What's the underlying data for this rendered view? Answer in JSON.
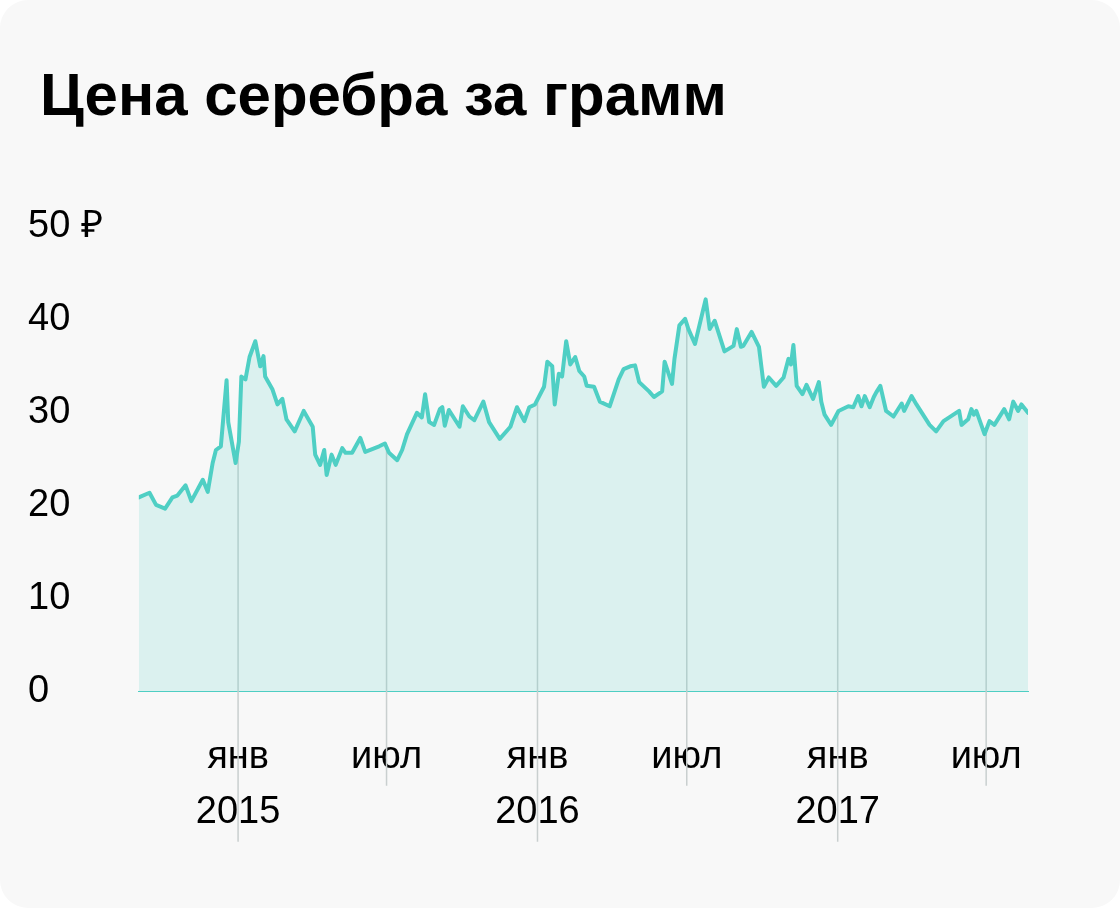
{
  "chart_data": {
    "type": "area",
    "title": "Цена серебра за грамм",
    "x": [
      "2014-09-02",
      "2014-09-15",
      "2014-09-23",
      "2014-10-04",
      "2014-10-13",
      "2014-10-19",
      "2014-10-29",
      "2014-11-05",
      "2014-11-19",
      "2014-11-25",
      "2014-12-01",
      "2014-12-05",
      "2014-12-11",
      "2014-12-18",
      "2014-12-20",
      "2014-12-29",
      "2015-01-02",
      "2015-01-05",
      "2015-01-10",
      "2015-01-15",
      "2015-01-22",
      "2015-01-28",
      "2015-02-01",
      "2015-02-03",
      "2015-02-12",
      "2015-02-18",
      "2015-02-24",
      "2015-03-01",
      "2015-03-11",
      "2015-03-22",
      "2015-04-02",
      "2015-04-05",
      "2015-04-11",
      "2015-04-16",
      "2015-04-19",
      "2015-04-25",
      "2015-04-30",
      "2015-05-08",
      "2015-05-12",
      "2015-05-20",
      "2015-05-30",
      "2015-06-05",
      "2015-06-22",
      "2015-06-29",
      "2015-07-04",
      "2015-07-14",
      "2015-07-20",
      "2015-07-26",
      "2015-08-07",
      "2015-08-13",
      "2015-08-17",
      "2015-08-22",
      "2015-08-28",
      "2015-09-04",
      "2015-09-07",
      "2015-09-10",
      "2015-09-15",
      "2015-09-28",
      "2015-10-02",
      "2015-10-10",
      "2015-10-16",
      "2015-10-27",
      "2015-11-03",
      "2015-11-16",
      "2015-11-29",
      "2015-12-07",
      "2015-12-16",
      "2015-12-22",
      "2015-12-29",
      "2016-01-09",
      "2016-01-13",
      "2016-01-19",
      "2016-01-22",
      "2016-01-27",
      "2016-01-31",
      "2016-02-05",
      "2016-02-10",
      "2016-02-16",
      "2016-02-21",
      "2016-02-27",
      "2016-03-01",
      "2016-03-10",
      "2016-03-17",
      "2016-03-29",
      "2016-04-03",
      "2016-04-09",
      "2016-04-15",
      "2016-04-23",
      "2016-04-29",
      "2016-05-04",
      "2016-05-16",
      "2016-05-22",
      "2016-06-01",
      "2016-06-04",
      "2016-06-13",
      "2016-06-16",
      "2016-06-22",
      "2016-06-29",
      "2016-07-03",
      "2016-07-11",
      "2016-07-24",
      "2016-07-29",
      "2016-08-04",
      "2016-08-16",
      "2016-08-27",
      "2016-08-31",
      "2016-09-05",
      "2016-09-08",
      "2016-09-18",
      "2016-09-27",
      "2016-10-03",
      "2016-10-09",
      "2016-10-18",
      "2016-10-27",
      "2016-11-02",
      "2016-11-05",
      "2016-11-08",
      "2016-11-12",
      "2016-11-19",
      "2016-11-24",
      "2016-12-02",
      "2016-12-09",
      "2016-12-12",
      "2016-12-16",
      "2016-12-24",
      "2017-01-02",
      "2017-01-14",
      "2017-01-20",
      "2017-01-26",
      "2017-01-30",
      "2017-02-03",
      "2017-02-09",
      "2017-02-14",
      "2017-02-17",
      "2017-02-22",
      "2017-03-01",
      "2017-03-10",
      "2017-03-20",
      "2017-03-23",
      "2017-04-01",
      "2017-04-07",
      "2017-04-15",
      "2017-04-23",
      "2017-05-01",
      "2017-05-10",
      "2017-05-29",
      "2017-06-01",
      "2017-06-09",
      "2017-06-13",
      "2017-06-16",
      "2017-06-19",
      "2017-06-29",
      "2017-07-05",
      "2017-07-11",
      "2017-07-23",
      "2017-07-29",
      "2017-08-03",
      "2017-08-09",
      "2017-08-13",
      "2017-08-21"
    ],
    "series": [
      {
        "color": "#4fcfc4",
        "values": [
          20.9,
          21.4,
          20.1,
          19.7,
          20.9,
          21.1,
          22.2,
          20.5,
          22.8,
          21.5,
          24.6,
          26.0,
          26.4,
          33.5,
          29.0,
          24.6,
          26.9,
          33.9,
          33.6,
          36.0,
          37.7,
          35.0,
          36.1,
          33.9,
          32.5,
          30.9,
          31.5,
          29.3,
          28.0,
          30.2,
          28.5,
          25.5,
          24.4,
          26.0,
          23.3,
          25.5,
          24.4,
          26.2,
          25.7,
          25.7,
          27.3,
          25.8,
          26.4,
          26.7,
          25.7,
          24.9,
          26.0,
          27.7,
          30.0,
          29.5,
          32.0,
          29.0,
          28.7,
          30.4,
          30.6,
          28.6,
          30.3,
          28.5,
          30.7,
          29.6,
          29.2,
          31.2,
          29.0,
          27.2,
          28.5,
          30.6,
          29.1,
          30.6,
          30.9,
          32.8,
          35.5,
          35.0,
          30.9,
          34.2,
          33.9,
          37.7,
          35.2,
          36.0,
          34.5,
          33.9,
          32.9,
          32.8,
          31.2,
          30.7,
          32.0,
          33.6,
          34.7,
          35.0,
          35.1,
          33.3,
          32.3,
          31.7,
          32.3,
          35.5,
          33.1,
          35.8,
          39.4,
          40.1,
          39.0,
          37.4,
          42.2,
          39.0,
          39.9,
          36.6,
          37.2,
          39.0,
          37.1,
          37.2,
          38.7,
          37.1,
          32.8,
          33.8,
          32.9,
          33.8,
          35.8,
          35.2,
          37.3,
          32.9,
          32.0,
          33.0,
          31.5,
          33.3,
          31.2,
          29.8,
          28.7,
          30.2,
          30.7,
          30.6,
          31.8,
          30.7,
          31.8,
          30.6,
          31.7,
          32.2,
          32.9,
          30.2,
          29.6,
          31.0,
          30.2,
          31.8,
          30.9,
          29.8,
          28.7,
          28.0,
          29.1,
          30.2,
          28.7,
          29.3,
          30.4,
          29.8,
          30.2,
          27.7,
          29.1,
          28.7,
          30.4,
          29.3,
          31.2,
          30.2,
          30.9,
          30.0
        ]
      }
    ],
    "xlim": [
      "2014-09-02",
      "2017-08-21"
    ],
    "xticks": [
      {
        "value": "2015-01-01",
        "label": "янв 2015"
      },
      {
        "value": "2015-07-01",
        "label": "июл"
      },
      {
        "value": "2016-01-01",
        "label": "янв 2016"
      },
      {
        "value": "2016-07-01",
        "label": "июл"
      },
      {
        "value": "2017-01-01",
        "label": "янв 2017"
      },
      {
        "value": "2017-07-01",
        "label": "июл"
      }
    ],
    "ylim": [
      0,
      50
    ],
    "yticks": [
      0,
      10,
      20,
      30,
      40,
      {
        "value": 50,
        "label": "50 ₽"
      }
    ],
    "grid": "x",
    "legend": false,
    "marker": "none",
    "line_style": "solid"
  }
}
